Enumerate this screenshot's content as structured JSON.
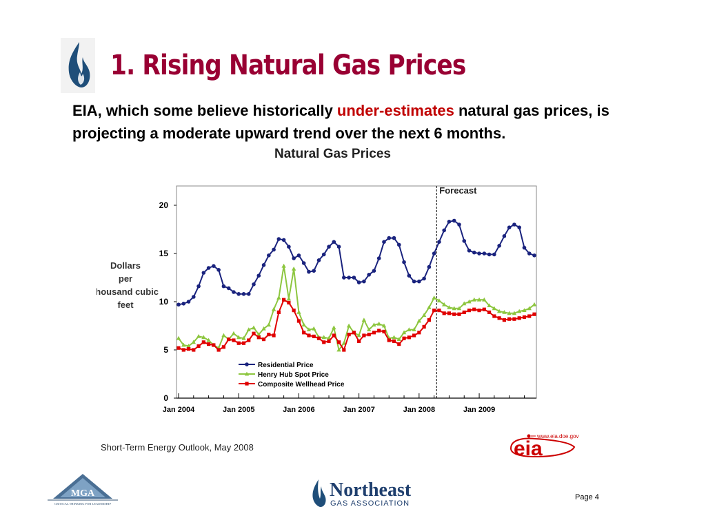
{
  "slide": {
    "title": "1. Rising Natural Gas Prices",
    "subtitle_part1": "EIA, which some believe historically ",
    "subtitle_highlight": "under-estimates",
    "subtitle_part2": " natural gas prices, is projecting a moderate upward trend over the next 6 months.",
    "source": "Short-Term Energy Outlook, May 2008",
    "page": "Page 4",
    "eia_url": "www.eia.doe.gov",
    "eia_logo_text": "eia",
    "nga_name": "Northeast",
    "nga_sub": "GAS ASSOCIATION",
    "mga_text": "MGA",
    "mga_tagline": "CRITICAL THINKING FOR LEADERSHIP",
    "colors": {
      "title": "#990033",
      "highlight": "#c00000"
    }
  },
  "chart_data": {
    "type": "line",
    "title": "Natural Gas Prices",
    "ylabel": "Dollars per thousand cubic feet",
    "ylim": [
      0,
      22
    ],
    "yticks": [
      0,
      5,
      10,
      15,
      20
    ],
    "xlabel": "",
    "x_tick_labels": [
      "Jan 2004",
      "Jan 2005",
      "Jan 2006",
      "Jan 2007",
      "Jan 2008",
      "Jan 2009"
    ],
    "x_start": "Jan 2004",
    "x_end": "Dec 2009",
    "forecast_label": "Forecast",
    "forecast_start": "May 2008",
    "grid": false,
    "legend_position": "lower-left",
    "series": [
      {
        "name": "Residential Price",
        "color": "#1a237e",
        "marker": "circle",
        "values": [
          9.7,
          9.8,
          10.0,
          10.5,
          11.6,
          13.0,
          13.5,
          13.7,
          13.3,
          11.6,
          11.4,
          11.0,
          10.8,
          10.8,
          10.8,
          11.8,
          12.7,
          13.8,
          14.8,
          15.4,
          16.5,
          16.4,
          15.7,
          14.5,
          14.8,
          14.0,
          13.1,
          13.2,
          14.3,
          14.9,
          15.7,
          16.2,
          15.7,
          12.5,
          12.5,
          12.5,
          12.0,
          12.1,
          12.8,
          13.2,
          14.5,
          16.2,
          16.6,
          16.6,
          15.9,
          14.1,
          12.7,
          12.1,
          12.1,
          12.4,
          13.6,
          15.0,
          16.2,
          17.4,
          18.3,
          18.4,
          18.0,
          16.3,
          15.3,
          15.1,
          15.0,
          15.0,
          14.9,
          14.9,
          15.8,
          16.8,
          17.7,
          18.0,
          17.7,
          15.6,
          15.0,
          14.8
        ]
      },
      {
        "name": "Henry Hub Spot Price",
        "color": "#8dc63f",
        "marker": "triangle",
        "values": [
          6.2,
          5.5,
          5.4,
          5.8,
          6.4,
          6.3,
          6.0,
          5.5,
          5.2,
          6.5,
          6.1,
          6.7,
          6.3,
          6.2,
          7.1,
          7.3,
          6.6,
          7.2,
          7.6,
          9.2,
          10.4,
          13.7,
          10.3,
          13.4,
          8.9,
          7.6,
          7.1,
          7.2,
          6.3,
          6.3,
          6.2,
          7.3,
          5.0,
          5.7,
          7.5,
          6.8,
          6.5,
          8.1,
          7.1,
          7.6,
          7.7,
          7.5,
          6.2,
          6.3,
          6.1,
          6.8,
          7.1,
          7.1,
          8.0,
          8.6,
          9.4,
          10.4,
          10.1,
          9.7,
          9.4,
          9.3,
          9.3,
          9.8,
          10.0,
          10.2,
          10.2,
          10.2,
          9.6,
          9.3,
          9.0,
          8.9,
          8.8,
          8.8,
          9.0,
          9.1,
          9.3,
          9.7
        ]
      },
      {
        "name": "Composite Wellhead Price",
        "color": "#e00000",
        "marker": "square",
        "values": [
          5.2,
          5.0,
          5.1,
          5.0,
          5.4,
          5.8,
          5.6,
          5.5,
          5.0,
          5.3,
          6.1,
          6.0,
          5.7,
          5.7,
          6.0,
          6.7,
          6.3,
          6.1,
          6.6,
          6.5,
          8.9,
          10.2,
          9.9,
          9.1,
          8.0,
          6.8,
          6.5,
          6.4,
          6.2,
          5.8,
          5.9,
          6.5,
          5.8,
          5.0,
          6.6,
          6.8,
          5.9,
          6.5,
          6.6,
          6.8,
          7.0,
          6.9,
          6.0,
          5.9,
          5.6,
          6.2,
          6.3,
          6.5,
          6.8,
          7.4,
          8.1,
          9.1,
          9.1,
          8.8,
          8.8,
          8.7,
          8.7,
          8.9,
          9.1,
          9.2,
          9.1,
          9.2,
          8.9,
          8.5,
          8.3,
          8.1,
          8.2,
          8.2,
          8.3,
          8.4,
          8.5,
          8.7
        ]
      }
    ]
  }
}
